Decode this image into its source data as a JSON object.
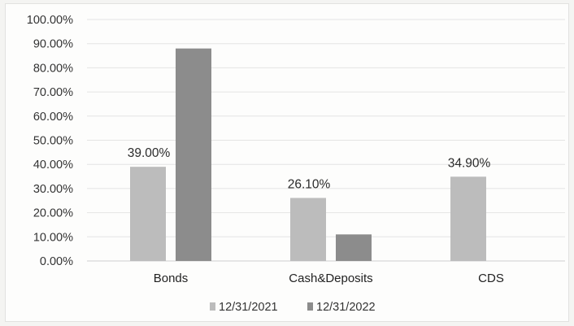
{
  "chart_data": {
    "type": "bar",
    "categories": [
      "Bonds",
      "Cash&Deposits",
      "CDS"
    ],
    "series": [
      {
        "name": "12/31/2021",
        "values": [
          39.0,
          26.1,
          34.9
        ],
        "labels": [
          "39.00%",
          "26.10%",
          "34.90%"
        ],
        "color": "#bcbcbc"
      },
      {
        "name": "12/31/2022",
        "values": [
          88.0,
          11.0,
          0
        ],
        "labels": [
          "",
          "",
          ""
        ],
        "color": "#8c8c8c"
      }
    ],
    "yticks": [
      "0.00%",
      "10.00%",
      "20.00%",
      "30.00%",
      "40.00%",
      "50.00%",
      "60.00%",
      "70.00%",
      "80.00%",
      "90.00%",
      "100.00%"
    ],
    "ylim": [
      0,
      100
    ],
    "grid": true,
    "legend_position": "bottom-center",
    "gridline_color": "#e4e4e4",
    "axis_color": "#d0d0d0"
  }
}
